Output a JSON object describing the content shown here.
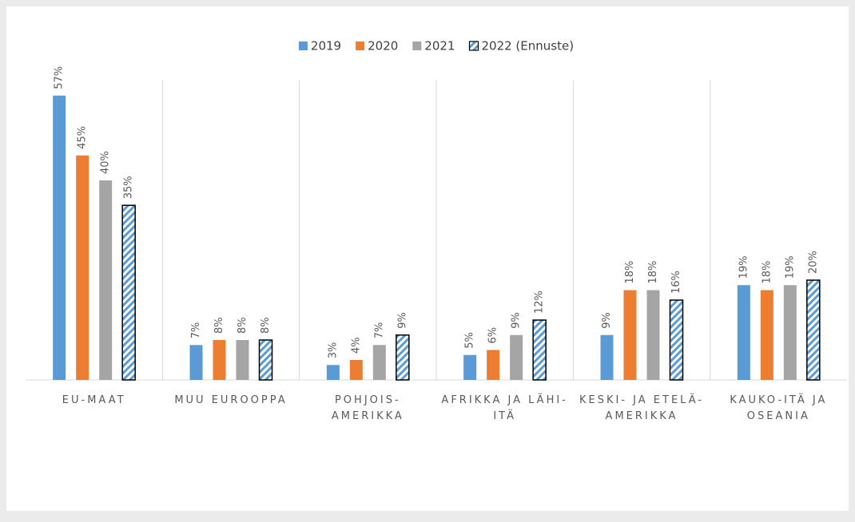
{
  "chart_data": {
    "type": "bar",
    "categories": [
      "EU-MAAT",
      "MUU EUROOPPA",
      "POHJOIS-AMERIKKA",
      "AFRIKKA JA LÄHI-ITÄ",
      "KESKI- JA ETELÄ-AMERIKKA",
      "KAUKO-ITÄ JA OSEANIA"
    ],
    "series": [
      {
        "name": "2019",
        "color": "#5b9bd5",
        "values": [
          57,
          7,
          3,
          5,
          9,
          19
        ],
        "value_labels": [
          "57%",
          "7%",
          "3%",
          "5%",
          "9%",
          "19%"
        ]
      },
      {
        "name": "2020",
        "color": "#ed7d31",
        "values": [
          45,
          8,
          4,
          6,
          18,
          18
        ],
        "value_labels": [
          "45%",
          "8%",
          "4%",
          "6%",
          "18%",
          "18%"
        ]
      },
      {
        "name": "2021",
        "color": "#a5a5a5",
        "values": [
          40,
          8,
          7,
          9,
          18,
          19
        ],
        "value_labels": [
          "40%",
          "8%",
          "7%",
          "9%",
          "18%",
          "19%"
        ]
      },
      {
        "name": "2022 (Ennuste)",
        "color": "#5b9bd5",
        "pattern": "hatch",
        "values": [
          35,
          8,
          9,
          12,
          16,
          20
        ],
        "value_labels": [
          "35%",
          "8%",
          "9%",
          "12%",
          "16%",
          "20%"
        ]
      }
    ],
    "legend": "top"
  }
}
